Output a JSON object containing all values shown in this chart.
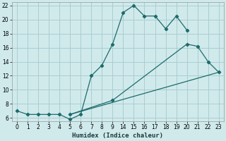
{
  "xlabel": "Humidex (Indice chaleur)",
  "bg_color": "#d0eaec",
  "grid_color": "#aacdd0",
  "line_color": "#1e6b6b",
  "xlim": [
    -0.5,
    23.5
  ],
  "ylim": [
    5.5,
    22.5
  ],
  "xtick_positions": [
    0,
    1,
    2,
    3,
    4,
    5,
    6,
    7,
    8,
    9,
    14,
    15,
    16,
    17,
    18,
    19,
    20,
    21,
    22,
    23
  ],
  "xtick_labels": [
    "0",
    "1",
    "2",
    "3",
    "4",
    "5",
    "6",
    "7",
    "8",
    "9",
    "14",
    "15",
    "16",
    "17",
    "18",
    "19",
    "20",
    "21",
    "22",
    "23"
  ],
  "ytick_positions": [
    6,
    8,
    10,
    12,
    14,
    16,
    18,
    20,
    22
  ],
  "ytick_labels": [
    "6",
    "8",
    "10",
    "12",
    "14",
    "16",
    "18",
    "20",
    "22"
  ],
  "line1_x": [
    0,
    1,
    2,
    3,
    4,
    5,
    6,
    7,
    8,
    9,
    14,
    15,
    16,
    17,
    18,
    19,
    20
  ],
  "line1_y": [
    7.0,
    6.5,
    6.5,
    6.5,
    6.5,
    5.8,
    6.5,
    12.0,
    13.5,
    16.5,
    21.0,
    22.0,
    20.5,
    20.5,
    18.7,
    20.5,
    18.5
  ],
  "line2_x": [
    5,
    9,
    20,
    21,
    22,
    23
  ],
  "line2_y": [
    6.5,
    8.5,
    16.5,
    16.2,
    14.0,
    12.5
  ],
  "line3_x": [
    5,
    23
  ],
  "line3_y": [
    6.5,
    12.5
  ]
}
